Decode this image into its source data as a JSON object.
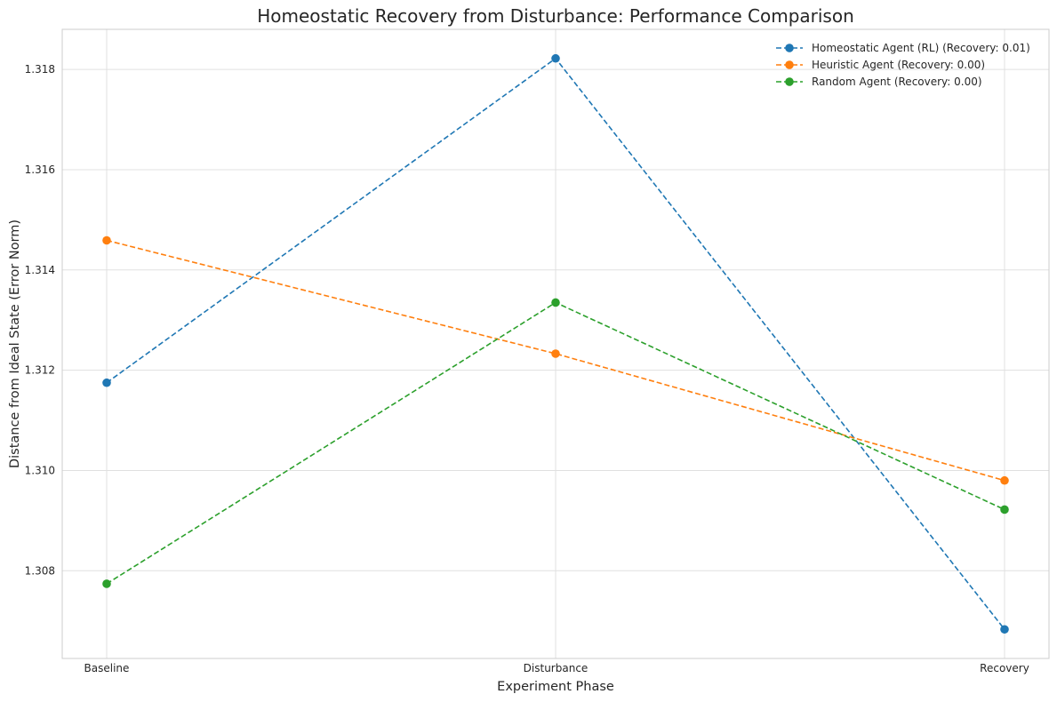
{
  "chart_data": {
    "type": "line",
    "title": "Homeostatic Recovery from Disturbance: Performance Comparison",
    "xlabel": "Experiment Phase",
    "ylabel": "Distance from Ideal State (Error Norm)",
    "categories": [
      "Baseline",
      "Disturbance",
      "Recovery"
    ],
    "ylim": [
      1.30625,
      1.3188
    ],
    "yticks": [
      "1.308",
      "1.310",
      "1.312",
      "1.314",
      "1.316",
      "1.318"
    ],
    "grid": true,
    "legend_position": "top-right",
    "line_style": "dashed",
    "series": [
      {
        "name": "Homeostatic Agent (RL) (Recovery: 0.01)",
        "color": "#1f77b4",
        "values": [
          1.31175,
          1.31822,
          1.30683
        ]
      },
      {
        "name": "Heuristic Agent (Recovery: 0.00)",
        "color": "#ff7f0e",
        "values": [
          1.31459,
          1.31233,
          1.3098
        ]
      },
      {
        "name": "Random Agent (Recovery: 0.00)",
        "color": "#2ca02c",
        "values": [
          1.30774,
          1.31335,
          1.30922
        ]
      }
    ]
  }
}
